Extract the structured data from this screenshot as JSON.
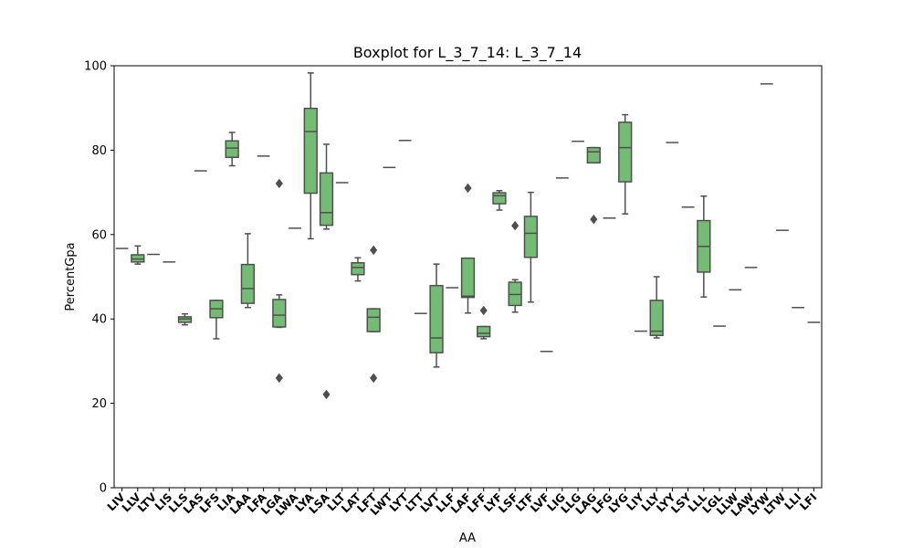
{
  "colors": {
    "box_fill": "#74bb74",
    "box_stroke": "#4f4f4f",
    "axis": "#000000",
    "background": "#ffffff"
  },
  "chart_data": {
    "type": "box",
    "title": "Boxplot for L_3_7_14: L_3_7_14",
    "xlabel": "AA",
    "ylabel": "PercentGpa",
    "ylim": [
      0,
      100
    ],
    "yticks": [
      0,
      20,
      40,
      60,
      80,
      100
    ],
    "grid": false,
    "categories": [
      "LIV",
      "LLV",
      "LTV",
      "LIS",
      "LLS",
      "LAS",
      "LFS",
      "LIA",
      "LAA",
      "LFA",
      "LGA",
      "LWA",
      "LYA",
      "LSA",
      "LLT",
      "LAT",
      "LFT",
      "LWT",
      "LYT",
      "LTT",
      "LVT",
      "LLF",
      "LAF",
      "LFF",
      "LYF",
      "LSF",
      "LTF",
      "LVF",
      "LIG",
      "LLG",
      "LAG",
      "LFG",
      "LYG",
      "LIY",
      "LLY",
      "LYY",
      "LSY",
      "LLL",
      "LGL",
      "LLW",
      "LAW",
      "LYW",
      "LTW",
      "LLI",
      "LFI"
    ],
    "boxes": [
      {
        "category": "LIV",
        "min": 56.7,
        "q1": 56.7,
        "median": 56.7,
        "q3": 56.7,
        "max": 56.7,
        "outliers": []
      },
      {
        "category": "LLV",
        "min": 53,
        "q1": 53.5,
        "median": 54.2,
        "q3": 55.2,
        "max": 57.3,
        "outliers": []
      },
      {
        "category": "LTV",
        "min": 55.3,
        "q1": 55.3,
        "median": 55.3,
        "q3": 55.3,
        "max": 55.3,
        "outliers": []
      },
      {
        "category": "LIS",
        "min": 53.5,
        "q1": 53.5,
        "median": 53.5,
        "q3": 53.5,
        "max": 53.5,
        "outliers": []
      },
      {
        "category": "LLS",
        "min": 38.6,
        "q1": 39.2,
        "median": 40,
        "q3": 40.5,
        "max": 41.2,
        "outliers": []
      },
      {
        "category": "LAS",
        "min": 75.1,
        "q1": 75.1,
        "median": 75.1,
        "q3": 75.1,
        "max": 75.1,
        "outliers": []
      },
      {
        "category": "LFS",
        "min": 35.3,
        "q1": 40.3,
        "median": 42.4,
        "q3": 44.4,
        "max": 44.4,
        "outliers": []
      },
      {
        "category": "LIA",
        "min": 76.3,
        "q1": 78.3,
        "median": 80.5,
        "q3": 82.2,
        "max": 84.2,
        "outliers": []
      },
      {
        "category": "LAA",
        "min": 42.7,
        "q1": 43.7,
        "median": 47.2,
        "q3": 52.9,
        "max": 60.2,
        "outliers": []
      },
      {
        "category": "LFA",
        "min": 78.6,
        "q1": 78.6,
        "median": 78.6,
        "q3": 78.6,
        "max": 78.6,
        "outliers": []
      },
      {
        "category": "LGA",
        "min": 38,
        "q1": 38.1,
        "median": 40.9,
        "q3": 44.6,
        "max": 45.7,
        "outliers": [
          26,
          72.1
        ]
      },
      {
        "category": "LWA",
        "min": 61.5,
        "q1": 61.5,
        "median": 61.5,
        "q3": 61.5,
        "max": 61.5,
        "outliers": []
      },
      {
        "category": "LYA",
        "min": 59,
        "q1": 69.8,
        "median": 84.4,
        "q3": 89.9,
        "max": 98.3,
        "outliers": []
      },
      {
        "category": "LSA",
        "min": 61.3,
        "q1": 62.2,
        "median": 65.2,
        "q3": 74.6,
        "max": 81.4,
        "outliers": [
          22.1
        ]
      },
      {
        "category": "LLT",
        "min": 72.3,
        "q1": 72.3,
        "median": 72.3,
        "q3": 72.3,
        "max": 72.3,
        "outliers": []
      },
      {
        "category": "LAT",
        "min": 49,
        "q1": 50.5,
        "median": 52.2,
        "q3": 53.3,
        "max": 54.5,
        "outliers": []
      },
      {
        "category": "LFT",
        "min": 37,
        "q1": 37,
        "median": 40.4,
        "q3": 42.4,
        "max": 42.4,
        "outliers": [
          26,
          56.3
        ]
      },
      {
        "category": "LWT",
        "min": 75.9,
        "q1": 75.9,
        "median": 75.9,
        "q3": 75.9,
        "max": 75.9,
        "outliers": []
      },
      {
        "category": "LYT",
        "min": 82.3,
        "q1": 82.3,
        "median": 82.3,
        "q3": 82.3,
        "max": 82.3,
        "outliers": []
      },
      {
        "category": "LTT",
        "min": 41.3,
        "q1": 41.3,
        "median": 41.3,
        "q3": 41.3,
        "max": 41.3,
        "outliers": []
      },
      {
        "category": "LVT",
        "min": 28.6,
        "q1": 32,
        "median": 35.5,
        "q3": 47.9,
        "max": 53,
        "outliers": []
      },
      {
        "category": "LLF",
        "min": 47.4,
        "q1": 47.4,
        "median": 47.4,
        "q3": 47.4,
        "max": 47.4,
        "outliers": []
      },
      {
        "category": "LAF",
        "min": 41.4,
        "q1": 45.1,
        "median": 45.4,
        "q3": 54.4,
        "max": 54.4,
        "outliers": [
          71
        ]
      },
      {
        "category": "LFF",
        "min": 35.3,
        "q1": 35.8,
        "median": 36.6,
        "q3": 38.2,
        "max": 38.2,
        "outliers": [
          42
        ]
      },
      {
        "category": "LYF",
        "min": 65.8,
        "q1": 67.3,
        "median": 69.2,
        "q3": 69.9,
        "max": 70.4,
        "outliers": []
      },
      {
        "category": "LSF",
        "min": 41.6,
        "q1": 43.2,
        "median": 45.8,
        "q3": 48.7,
        "max": 49.3,
        "outliers": [
          62.1
        ]
      },
      {
        "category": "LTF",
        "min": 44,
        "q1": 54.6,
        "median": 60.3,
        "q3": 64.3,
        "max": 70,
        "outliers": []
      },
      {
        "category": "LVF",
        "min": 32.3,
        "q1": 32.3,
        "median": 32.3,
        "q3": 32.3,
        "max": 32.3,
        "outliers": []
      },
      {
        "category": "LIG",
        "min": 73.4,
        "q1": 73.4,
        "median": 73.4,
        "q3": 73.4,
        "max": 73.4,
        "outliers": []
      },
      {
        "category": "LLG",
        "min": 82.1,
        "q1": 82.1,
        "median": 82.1,
        "q3": 82.1,
        "max": 82.1,
        "outliers": []
      },
      {
        "category": "LAG",
        "min": 77,
        "q1": 77,
        "median": 79.6,
        "q3": 80.6,
        "max": 80.6,
        "outliers": [
          63.6
        ]
      },
      {
        "category": "LFG",
        "min": 63.9,
        "q1": 63.9,
        "median": 63.9,
        "q3": 63.9,
        "max": 63.9,
        "outliers": []
      },
      {
        "category": "LYG",
        "min": 64.9,
        "q1": 72.5,
        "median": 80.6,
        "q3": 86.6,
        "max": 88.4,
        "outliers": []
      },
      {
        "category": "LIY",
        "min": 37.1,
        "q1": 37.1,
        "median": 37.1,
        "q3": 37.1,
        "max": 37.1,
        "outliers": []
      },
      {
        "category": "LLY",
        "min": 35.5,
        "q1": 36.1,
        "median": 37.1,
        "q3": 44.4,
        "max": 50,
        "outliers": []
      },
      {
        "category": "LYY",
        "min": 81.8,
        "q1": 81.8,
        "median": 81.8,
        "q3": 81.8,
        "max": 81.8,
        "outliers": []
      },
      {
        "category": "LSY",
        "min": 66.5,
        "q1": 66.5,
        "median": 66.5,
        "q3": 66.5,
        "max": 66.5,
        "outliers": []
      },
      {
        "category": "LLL",
        "min": 45.2,
        "q1": 51.1,
        "median": 57.2,
        "q3": 63.3,
        "max": 69.1,
        "outliers": []
      },
      {
        "category": "LGL",
        "min": 38.3,
        "q1": 38.3,
        "median": 38.3,
        "q3": 38.3,
        "max": 38.3,
        "outliers": []
      },
      {
        "category": "LLW",
        "min": 46.9,
        "q1": 46.9,
        "median": 46.9,
        "q3": 46.9,
        "max": 46.9,
        "outliers": []
      },
      {
        "category": "LAW",
        "min": 52.2,
        "q1": 52.2,
        "median": 52.2,
        "q3": 52.2,
        "max": 52.2,
        "outliers": []
      },
      {
        "category": "LYW",
        "min": 95.7,
        "q1": 95.7,
        "median": 95.7,
        "q3": 95.7,
        "max": 95.7,
        "outliers": []
      },
      {
        "category": "LTW",
        "min": 61,
        "q1": 61,
        "median": 61,
        "q3": 61,
        "max": 61,
        "outliers": []
      },
      {
        "category": "LLI",
        "min": 42.7,
        "q1": 42.7,
        "median": 42.7,
        "q3": 42.7,
        "max": 42.7,
        "outliers": []
      },
      {
        "category": "LFI",
        "min": 39.2,
        "q1": 39.2,
        "median": 39.2,
        "q3": 39.2,
        "max": 39.2,
        "outliers": []
      }
    ]
  }
}
